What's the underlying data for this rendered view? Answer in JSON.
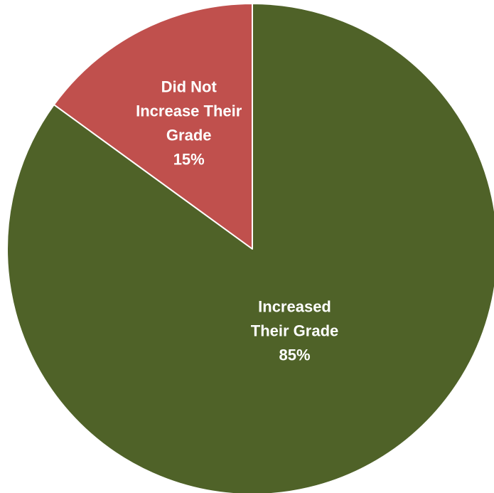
{
  "chart_data": {
    "type": "pie",
    "title": "",
    "slices": [
      {
        "label_lines": [
          "Did Not",
          "Increase Their",
          "Grade"
        ],
        "value": 15,
        "value_label": "15%",
        "color": "#C0504D"
      },
      {
        "label_lines": [
          "Increased",
          "Their Grade"
        ],
        "value": 85,
        "value_label": "85%",
        "color": "#4F6228"
      }
    ],
    "start_angle": "12 o'clock",
    "direction": "counterclockwise",
    "legend": "none",
    "labels": "inside slices, white bold"
  }
}
